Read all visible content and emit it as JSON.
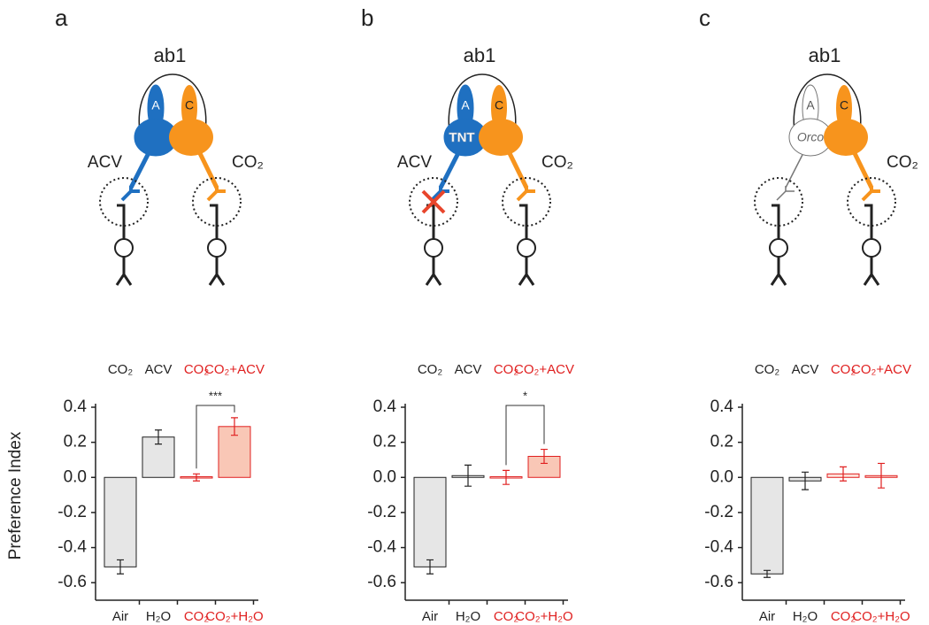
{
  "panels": [
    {
      "label": "a",
      "diagram": {
        "title": "ab1",
        "neuron_a": "A",
        "neuron_c": "C",
        "left_odor": "ACV",
        "right_odor": "CO₂"
      }
    },
    {
      "label": "b",
      "diagram": {
        "title": "ab1",
        "neuron_a": "A",
        "neuron_c": "C",
        "left_odor": "ACV",
        "right_odor": "CO₂",
        "block": "TNT"
      }
    },
    {
      "label": "c",
      "diagram": {
        "title": "ab1",
        "neuron_a": "A",
        "neuron_c": "C",
        "right_odor": "CO₂",
        "mutant": "Orco"
      }
    }
  ],
  "chart_data": [
    {
      "type": "bar",
      "ylabel": "Preference Index",
      "stimulus_labels": [
        "CO₂",
        "ACV",
        "CO₂",
        "CO₂+ACV"
      ],
      "stimulus_label_colors": [
        "#222",
        "#222",
        "#e02020",
        "#e02020"
      ],
      "categories": [
        "Air",
        "H₂O",
        "CO₂",
        "CO₂+H₂O"
      ],
      "category_colors": [
        "#222",
        "#222",
        "#e02020",
        "#e02020"
      ],
      "values": [
        -0.51,
        0.23,
        0.0,
        0.29
      ],
      "errors": [
        0.04,
        0.04,
        0.02,
        0.05
      ],
      "colors": [
        "#e6e6e6",
        "#e6e6e6",
        "#fde2da",
        "#f9c7b6"
      ],
      "edge_colors": [
        "#222",
        "#222",
        "#e02020",
        "#e02020"
      ],
      "annotation": {
        "text": "***",
        "between": [
          2,
          3
        ]
      },
      "ylim": [
        -0.7,
        0.4
      ],
      "yticks": [
        0.4,
        0.2,
        {
          "value": 0,
          "label": "0.0"
        },
        -0.2,
        -0.4,
        -0.6
      ]
    },
    {
      "type": "bar",
      "stimulus_labels": [
        "CO₂",
        "ACV",
        "CO₂",
        "CO₂+ACV"
      ],
      "stimulus_label_colors": [
        "#222",
        "#222",
        "#e02020",
        "#e02020"
      ],
      "categories": [
        "Air",
        "H₂O",
        "CO₂",
        "CO₂+H₂O"
      ],
      "category_colors": [
        "#222",
        "#222",
        "#e02020",
        "#e02020"
      ],
      "values": [
        -0.51,
        0.01,
        0.0,
        0.12
      ],
      "errors": [
        0.04,
        0.06,
        0.04,
        0.04
      ],
      "colors": [
        "#e6e6e6",
        "#ffffff",
        "#ffffff",
        "#f9c7b6"
      ],
      "edge_colors": [
        "#222",
        "#222",
        "#e02020",
        "#e02020"
      ],
      "annotation": {
        "text": "*",
        "between": [
          2,
          3
        ]
      },
      "ylim": [
        -0.7,
        0.4
      ],
      "yticks": [
        0.4,
        0.2,
        {
          "value": 0,
          "label": "0.0"
        },
        -0.2,
        -0.4,
        -0.6
      ]
    },
    {
      "type": "bar",
      "stimulus_labels": [
        "CO₂",
        "ACV",
        "CO₂",
        "CO₂+ACV"
      ],
      "stimulus_label_colors": [
        "#222",
        "#222",
        "#e02020",
        "#e02020"
      ],
      "categories": [
        "Air",
        "H₂O",
        "CO₂",
        "CO₂+H₂O"
      ],
      "category_colors": [
        "#222",
        "#222",
        "#e02020",
        "#e02020"
      ],
      "values": [
        -0.55,
        -0.02,
        0.02,
        0.01
      ],
      "errors": [
        0.02,
        0.05,
        0.04,
        0.07
      ],
      "colors": [
        "#e6e6e6",
        "#e6e6e6",
        "#fde2da",
        "#fde2da"
      ],
      "edge_colors": [
        "#222",
        "#222",
        "#e02020",
        "#e02020"
      ],
      "ylim": [
        -0.7,
        0.4
      ],
      "yticks": [
        0.4,
        0.2,
        {
          "value": 0,
          "label": "0.0"
        },
        -0.2,
        -0.4,
        -0.6
      ]
    }
  ]
}
